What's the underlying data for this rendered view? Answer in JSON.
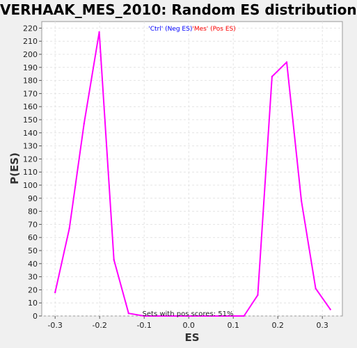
{
  "chart_data": {
    "type": "line",
    "title": "VERHAAK_MES_2010: Random ES distribution",
    "xlabel": "ES",
    "ylabel": "P(ES)",
    "xlim": [
      -0.33,
      0.345
    ],
    "ylim": [
      0,
      225
    ],
    "x_ticks": [
      -0.3,
      -0.2,
      -0.1,
      0.0,
      0.1,
      0.2,
      0.3
    ],
    "x_tick_labels": [
      "-0.3",
      "-0.2",
      "-0.1",
      "0.0",
      "0.1",
      "0.2",
      "0.3"
    ],
    "y_ticks": [
      0,
      10,
      20,
      30,
      40,
      50,
      60,
      70,
      80,
      90,
      100,
      110,
      120,
      130,
      140,
      150,
      160,
      170,
      180,
      190,
      200,
      210,
      220
    ],
    "grid": true,
    "legend": {
      "placement": "top-center",
      "parts": [
        {
          "text": "'Ctrl' (Neg ES)",
          "color": "#0000ff"
        },
        {
          "text": "'Mes' (Pos ES)",
          "color": "#ff0000"
        }
      ]
    },
    "annotation": "Sets with pos scores: 51%",
    "series": [
      {
        "color": "#ff00ff",
        "x": [
          -0.3,
          -0.268,
          -0.235,
          -0.201,
          -0.168,
          -0.135,
          -0.1,
          -0.07,
          0.124,
          0.155,
          0.187,
          0.22,
          0.253,
          0.285,
          0.318
        ],
        "y": [
          18,
          67,
          147,
          217,
          43,
          2,
          0,
          0,
          0,
          16,
          183,
          194,
          88,
          21,
          5
        ]
      }
    ]
  }
}
